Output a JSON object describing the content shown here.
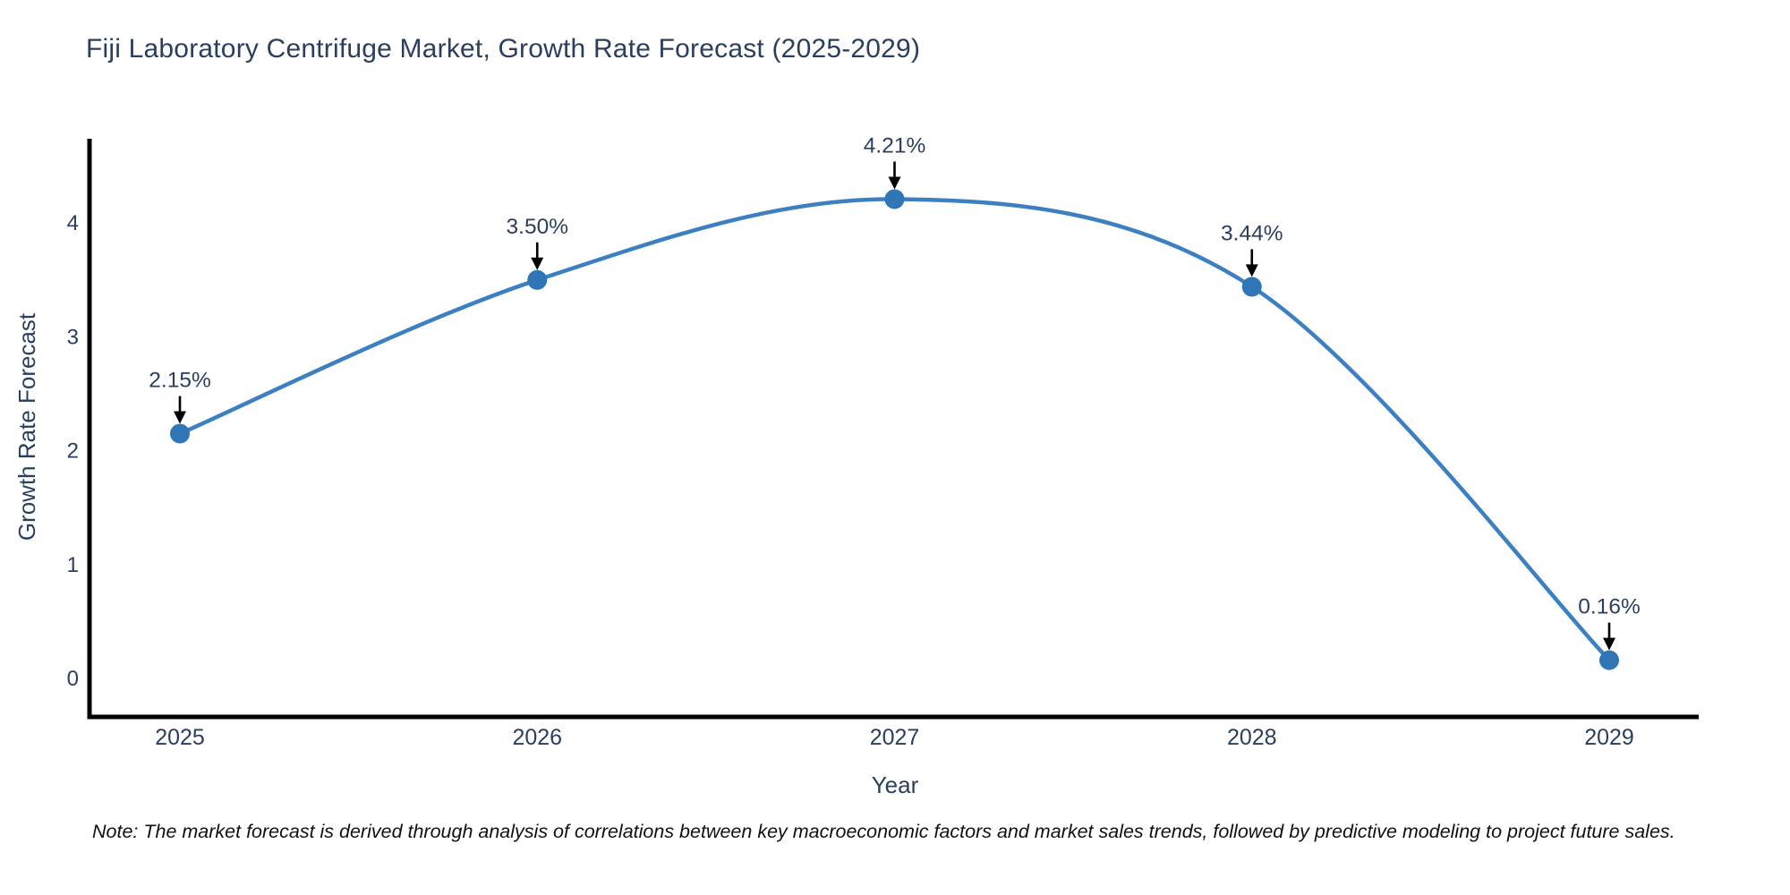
{
  "title": "Fiji Laboratory Centrifuge Market, Growth Rate Forecast (2025-2029)",
  "note": "Note: The market forecast is derived through analysis of correlations between key macroeconomic factors and market sales trends, followed by predictive modeling to project future sales.",
  "chart_data": {
    "type": "line",
    "line_shape": "spline",
    "title": "Fiji Laboratory Centrifuge Market, Growth Rate Forecast (2025-2029)",
    "xlabel": "Year",
    "ylabel": "Growth Rate Forecast",
    "x": [
      2025,
      2026,
      2027,
      2028,
      2029
    ],
    "values": [
      2.15,
      3.5,
      4.21,
      3.44,
      0.16
    ],
    "point_labels": [
      "2.15%",
      "3.50%",
      "4.21%",
      "3.44%",
      "0.16%"
    ],
    "yticks": [
      0,
      1,
      2,
      3,
      4
    ],
    "ylim": [
      -0.34,
      4.74
    ],
    "grid": false,
    "legend_position": "none",
    "annotation_style": "label-with-down-arrow",
    "colors": {
      "line": "#3d80c2",
      "marker": "#2e76b5",
      "arrow": "#000000",
      "axis": "#000000",
      "tick_text": "#2a3f5f",
      "title_text": "#2a3f5f",
      "annotation_text": "#2a3f5f"
    }
  }
}
